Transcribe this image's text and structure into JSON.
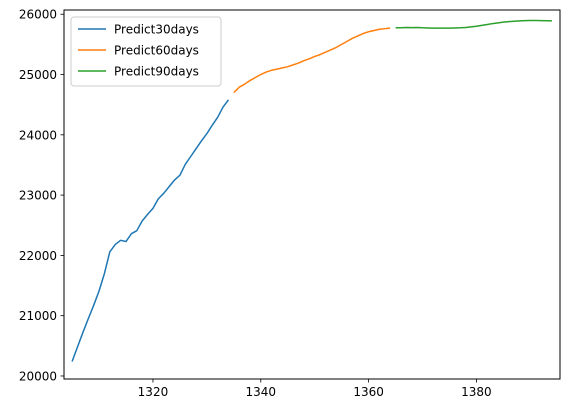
{
  "chart_data": {
    "type": "line",
    "title": "",
    "xlabel": "",
    "ylabel": "",
    "xlim": [
      1303.5,
      1395.5
    ],
    "ylim": [
      19950,
      26070
    ],
    "x_ticks": [
      1320,
      1340,
      1360,
      1380
    ],
    "y_ticks": [
      20000,
      21000,
      22000,
      23000,
      24000,
      25000,
      26000
    ],
    "grid": false,
    "legend_placement": "top-left",
    "series": [
      {
        "name": "Predict30days",
        "color": "#1f77b4",
        "x": [
          1305,
          1306,
          1307,
          1308,
          1309,
          1310,
          1311,
          1312,
          1313,
          1314,
          1315,
          1316,
          1317,
          1318,
          1319,
          1320,
          1321,
          1322,
          1323,
          1324,
          1325,
          1326,
          1327,
          1328,
          1329,
          1330,
          1331,
          1332,
          1333,
          1334
        ],
        "y": [
          20240,
          20480,
          20720,
          20950,
          21170,
          21410,
          21700,
          22060,
          22180,
          22250,
          22230,
          22360,
          22410,
          22570,
          22680,
          22780,
          22940,
          23030,
          23140,
          23250,
          23330,
          23510,
          23640,
          23770,
          23900,
          24020,
          24160,
          24290,
          24460,
          24580
        ]
      },
      {
        "name": "Predict60days",
        "color": "#ff7f0e",
        "x": [
          1335,
          1336,
          1337,
          1338,
          1339,
          1340,
          1341,
          1342,
          1343,
          1344,
          1345,
          1346,
          1347,
          1348,
          1349,
          1350,
          1351,
          1352,
          1353,
          1354,
          1355,
          1356,
          1357,
          1358,
          1359,
          1360,
          1361,
          1362,
          1363,
          1364
        ],
        "y": [
          24700,
          24790,
          24840,
          24900,
          24950,
          25000,
          25040,
          25070,
          25090,
          25110,
          25130,
          25160,
          25190,
          25230,
          25260,
          25300,
          25330,
          25370,
          25410,
          25450,
          25500,
          25550,
          25600,
          25640,
          25680,
          25710,
          25730,
          25750,
          25760,
          25770
        ]
      },
      {
        "name": "Predict90days",
        "color": "#2ca02c",
        "x": [
          1365,
          1366,
          1367,
          1368,
          1369,
          1370,
          1371,
          1372,
          1373,
          1374,
          1375,
          1376,
          1377,
          1378,
          1379,
          1380,
          1381,
          1382,
          1383,
          1384,
          1385,
          1386,
          1387,
          1388,
          1389,
          1390,
          1391,
          1392,
          1393,
          1394
        ],
        "y": [
          25775,
          25775,
          25780,
          25778,
          25780,
          25775,
          25772,
          25770,
          25770,
          25770,
          25770,
          25772,
          25775,
          25780,
          25790,
          25800,
          25815,
          25830,
          25845,
          25857,
          25868,
          25877,
          25884,
          25890,
          25893,
          25895,
          25895,
          25894,
          25892,
          25890
        ]
      }
    ]
  }
}
